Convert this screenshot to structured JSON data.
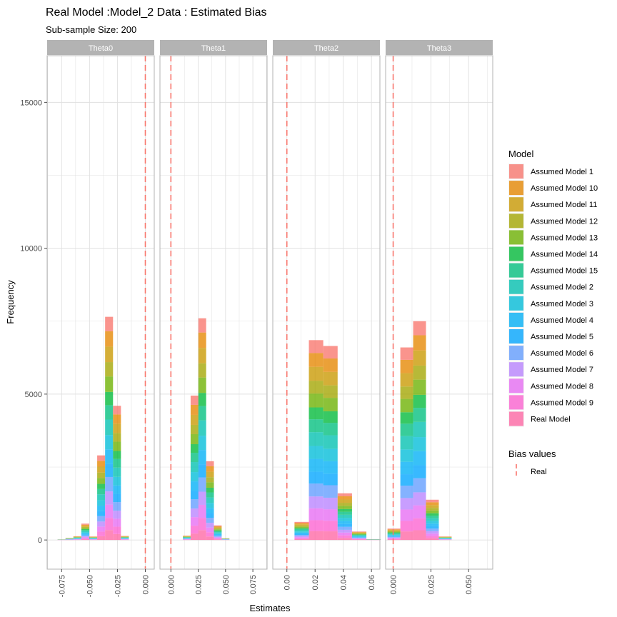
{
  "chart_data": {
    "type": "bar",
    "title": "Real Model :Model_2 Data : Estimated Bias",
    "subtitle": "Sub-sample Size: 200",
    "xlabel": "Estimates",
    "ylabel": "Frequency",
    "ylim": [
      -1000,
      16600
    ],
    "y_ticks": [
      0,
      5000,
      10000,
      15000
    ],
    "y_tick_labels": [
      "0",
      "5000",
      "10000",
      "15000"
    ],
    "grid": true,
    "legend_position": "right",
    "legend_fill_title": "Model",
    "legend_line_title": "Bias values",
    "legend_line_label": "Real",
    "series": [
      {
        "name": "Assumed Model 1",
        "color": "#F8766D"
      },
      {
        "name": "Assumed Model 10",
        "color": "#E58700"
      },
      {
        "name": "Assumed Model 11",
        "color": "#C99800"
      },
      {
        "name": "Assumed Model 12",
        "color": "#A3A500"
      },
      {
        "name": "Assumed Model 13",
        "color": "#6BB100"
      },
      {
        "name": "Assumed Model 14",
        "color": "#00BA38"
      },
      {
        "name": "Assumed Model 15",
        "color": "#00BF7D"
      },
      {
        "name": "Assumed Model 2",
        "color": "#00C0AF"
      },
      {
        "name": "Assumed Model 3",
        "color": "#00BCD8"
      },
      {
        "name": "Assumed Model 4",
        "color": "#00B0F6"
      },
      {
        "name": "Assumed Model 5",
        "color": "#00A5FF"
      },
      {
        "name": "Assumed Model 6",
        "color": "#619CFF"
      },
      {
        "name": "Assumed Model 7",
        "color": "#B983FF"
      },
      {
        "name": "Assumed Model 8",
        "color": "#E76BF3"
      },
      {
        "name": "Assumed Model 9",
        "color": "#FD61D1"
      },
      {
        "name": "Real Model",
        "color": "#FF67A4"
      }
    ],
    "reference_line_color": "#F8766D",
    "panels": [
      {
        "label": "Theta0",
        "xlim": [
          -0.088,
          0.008
        ],
        "x_ticks": [
          -0.075,
          -0.05,
          -0.025,
          0.0
        ],
        "x_tick_labels": [
          "-0.075",
          "-0.050",
          "-0.025",
          "0.000"
        ],
        "reference": 0.0,
        "bin_width": 0.0071,
        "bins": [
          {
            "center": -0.0751,
            "total": 20
          },
          {
            "center": -0.068,
            "total": 70
          },
          {
            "center": -0.0609,
            "total": 130
          },
          {
            "center": -0.0538,
            "total": 560
          },
          {
            "center": -0.0467,
            "total": 120
          },
          {
            "center": -0.0396,
            "total": 2900
          },
          {
            "center": -0.0325,
            "total": 7650
          },
          {
            "center": -0.0254,
            "total": 4600
          },
          {
            "center": -0.0183,
            "total": 140
          },
          {
            "center": -0.0112,
            "total": 0
          }
        ]
      },
      {
        "label": "Theta1",
        "xlim": [
          -0.01,
          0.088
        ],
        "x_ticks": [
          0.0,
          0.025,
          0.05,
          0.075
        ],
        "x_tick_labels": [
          "0.000",
          "0.025",
          "0.050",
          "0.075"
        ],
        "reference": 0.0,
        "bin_width": 0.0071,
        "bins": [
          {
            "center": 0.0145,
            "total": 150
          },
          {
            "center": 0.0216,
            "total": 4950
          },
          {
            "center": 0.0287,
            "total": 7600
          },
          {
            "center": 0.0358,
            "total": 2700
          },
          {
            "center": 0.0429,
            "total": 500
          },
          {
            "center": 0.05,
            "total": 60
          }
        ]
      },
      {
        "label": "Theta2",
        "xlim": [
          -0.01,
          0.066
        ],
        "x_ticks": [
          0.0,
          0.02,
          0.04,
          0.06
        ],
        "x_tick_labels": [
          "0.00",
          "0.02",
          "0.04",
          "0.06"
        ],
        "reference": 0.0,
        "bin_width": 0.0102,
        "bins": [
          {
            "center": 0.0105,
            "total": 620
          },
          {
            "center": 0.0207,
            "total": 6850
          },
          {
            "center": 0.0309,
            "total": 6650
          },
          {
            "center": 0.0411,
            "total": 1600
          },
          {
            "center": 0.0513,
            "total": 290
          },
          {
            "center": 0.0615,
            "total": 30
          }
        ]
      },
      {
        "label": "Theta3",
        "xlim": [
          -0.005,
          0.066
        ],
        "x_ticks": [
          0.0,
          0.025,
          0.05
        ],
        "x_tick_labels": [
          "0.000",
          "0.025",
          "0.050"
        ],
        "reference": 0.0,
        "bin_width": 0.0085,
        "bins": [
          {
            "center": 0.0005,
            "total": 390
          },
          {
            "center": 0.009,
            "total": 6600
          },
          {
            "center": 0.0175,
            "total": 7500
          },
          {
            "center": 0.026,
            "total": 1380
          },
          {
            "center": 0.0345,
            "total": 120
          },
          {
            "center": 0.043,
            "total": 0
          }
        ]
      }
    ]
  }
}
